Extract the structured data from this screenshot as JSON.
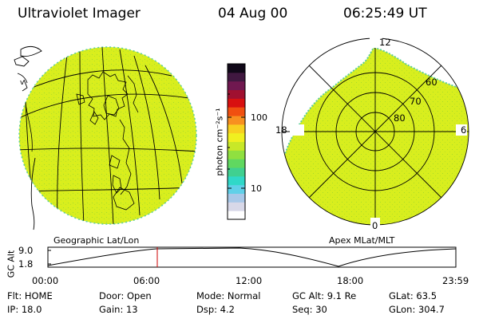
{
  "header": {
    "title": "Ultraviolet Imager",
    "date": "04 Aug 00",
    "time": "06:25:49 UT"
  },
  "colors": {
    "background": "#ffffff",
    "disk_fill": "#d8ee1e",
    "disk_speckle": "#a8dc2a",
    "edge_teal": "#5ccf9a",
    "line_color": "#000000",
    "cursor_red": "#cc0000"
  },
  "geo_panel": {
    "label": "Geographic Lat/Lon"
  },
  "polar_panel": {
    "label": "Apex MLat/MLT",
    "mlt_labels": {
      "top": "12",
      "left": "18",
      "right": "6",
      "bottom": "0"
    },
    "lat_labels": [
      "60",
      "70",
      "80"
    ]
  },
  "colorbar": {
    "unit_label": "photon cm⁻²s⁻¹",
    "ticks": [
      "100",
      "10"
    ],
    "colors": [
      "#ffffff",
      "#d8d8e8",
      "#a8c8e8",
      "#60d0e8",
      "#30d8c8",
      "#40d090",
      "#60d860",
      "#90e040",
      "#c8e828",
      "#f0f020",
      "#f8d020",
      "#f89020",
      "#f05010",
      "#d81010",
      "#a01030",
      "#701850",
      "#401840",
      "#100818"
    ]
  },
  "timeline": {
    "ylabel_line1": "GC",
    "ylabel_line2": "Alt",
    "yticks": [
      "9.0",
      "1.8"
    ],
    "xticks": [
      "00:00",
      "06:00",
      "12:00",
      "18:00",
      "23:59"
    ],
    "cursor_hour": 6.43
  },
  "info": {
    "row1": [
      "Flt: HOME",
      "Door: Open",
      "Mode: Normal",
      "GC Alt: 9.1 Re",
      "GLat:  63.5"
    ],
    "row2": [
      "IP: 18.0",
      "Gain: 13",
      "Dsp:     4.2",
      "Seq: 30",
      "GLon: 304.7"
    ]
  }
}
